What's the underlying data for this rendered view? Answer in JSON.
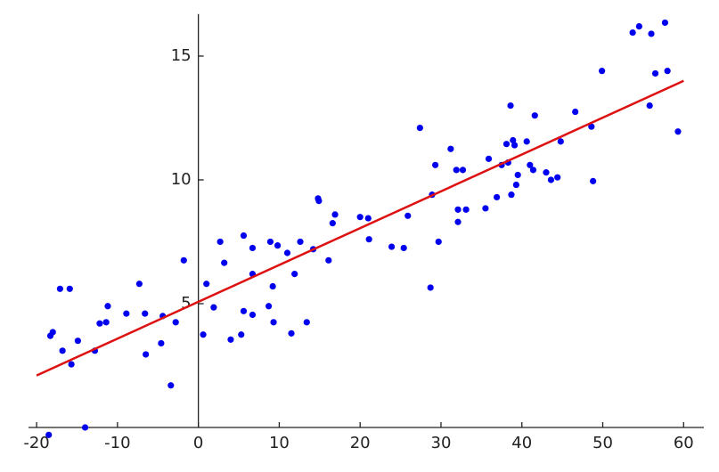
{
  "chart_data": {
    "type": "scatter",
    "xlim": [
      -21,
      62.5
    ],
    "ylim": [
      0,
      16.7
    ],
    "xticks": [
      -20,
      -10,
      0,
      10,
      20,
      30,
      40,
      50,
      60
    ],
    "yticks": [
      5,
      10,
      15
    ],
    "points": {
      "color": "#0000ee",
      "x": [
        -18.5,
        -14.0,
        -18.3,
        -18.0,
        -17.1,
        -15.9,
        -16.8,
        -15.7,
        -14.9,
        -12.8,
        -12.2,
        -11.4,
        -11.2,
        -8.9,
        -7.3,
        -6.6,
        -6.5,
        -4.6,
        -4.4,
        -3.4,
        -2.8,
        -1.8,
        0.6,
        1.0,
        1.9,
        2.7,
        3.2,
        4.0,
        5.3,
        5.6,
        5.6,
        6.7,
        6.7,
        6.7,
        8.7,
        8.9,
        9.2,
        9.3,
        9.8,
        11.0,
        11.5,
        11.9,
        12.6,
        13.4,
        14.2,
        14.8,
        14.9,
        16.1,
        16.6,
        16.9,
        20.0,
        21.0,
        21.1,
        23.9,
        25.4,
        25.9,
        27.4,
        28.7,
        28.9,
        29.3,
        29.7,
        31.2,
        31.9,
        32.1,
        32.1,
        32.7,
        33.1,
        35.5,
        35.9,
        36.9,
        37.5,
        38.1,
        38.3,
        38.6,
        38.7,
        38.9,
        39.1,
        39.3,
        39.5,
        40.6,
        41.0,
        41.4,
        41.6,
        43.0,
        43.6,
        44.4,
        44.8,
        46.6,
        48.6,
        48.8,
        49.9,
        53.7,
        54.5,
        55.8,
        56.0,
        56.5,
        57.7,
        58.0,
        59.3
      ],
      "values": [
        -0.3,
        0.0,
        3.7,
        3.85,
        5.6,
        5.6,
        3.1,
        2.55,
        3.5,
        3.1,
        4.2,
        4.25,
        4.9,
        4.6,
        5.8,
        4.6,
        2.95,
        3.4,
        4.5,
        1.7,
        4.25,
        6.75,
        3.75,
        5.8,
        4.85,
        7.5,
        6.65,
        3.55,
        3.75,
        4.7,
        7.75,
        4.55,
        7.25,
        6.2,
        4.9,
        7.5,
        5.7,
        4.25,
        7.35,
        7.05,
        3.8,
        6.2,
        7.5,
        4.25,
        7.2,
        9.25,
        9.15,
        6.75,
        8.25,
        8.6,
        8.5,
        8.45,
        7.6,
        7.3,
        7.25,
        8.55,
        12.1,
        5.65,
        9.4,
        10.6,
        7.5,
        11.25,
        10.4,
        8.8,
        8.3,
        10.4,
        8.8,
        8.85,
        10.85,
        9.3,
        10.6,
        11.45,
        10.7,
        13.0,
        9.4,
        11.6,
        11.4,
        9.8,
        10.2,
        11.55,
        10.6,
        10.4,
        12.6,
        10.3,
        10.0,
        10.1,
        11.55,
        12.75,
        12.15,
        9.95,
        14.4,
        15.95,
        16.2,
        13.0,
        15.9,
        14.3,
        16.35,
        14.4,
        11.95
      ]
    },
    "fit": {
      "color": "#dd1111",
      "x": [
        -20,
        60
      ],
      "values": [
        2.1,
        14.0
      ]
    }
  }
}
